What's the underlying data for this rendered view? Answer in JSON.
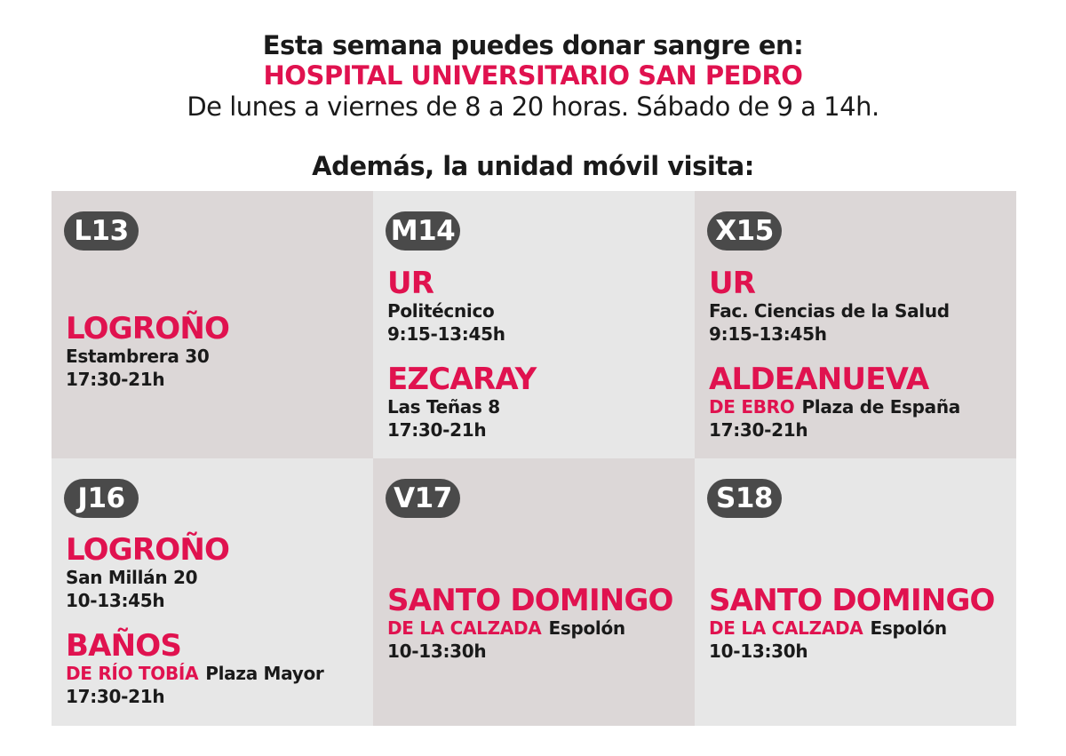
{
  "header": {
    "line1": "Esta semana puedes donar sangre en:",
    "hospital": "HOSPITAL UNIVERSITARIO SAN PEDRO",
    "hours": "De lunes a viernes de 8 a 20 horas. Sábado de 9 a 14h.",
    "mobile_intro": "Además, la unidad móvil visita:"
  },
  "colors": {
    "accent": "#e0124f",
    "badge": "#4a4a4a",
    "cell_dark": "#dcd7d7",
    "cell_light": "#e7e7e7"
  },
  "days": [
    {
      "badge": "L13",
      "entries": [
        {
          "city": "LOGROÑO",
          "address": "Estambrera 30",
          "time": "17:30-21h"
        }
      ]
    },
    {
      "badge": "M14",
      "entries": [
        {
          "city": "UR",
          "address": "Politécnico",
          "time": "9:15-13:45h"
        },
        {
          "city": "EZCARAY",
          "address": "Las Teñas 8",
          "time": "17:30-21h"
        }
      ]
    },
    {
      "badge": "X15",
      "entries": [
        {
          "city": "UR",
          "address": "Fac. Ciencias de la Salud",
          "time": "9:15-13:45h"
        },
        {
          "city": "ALDEANUEVA",
          "city_sub": "DE EBRO",
          "address": "Plaza de España",
          "time": "17:30-21h"
        }
      ]
    },
    {
      "badge": "J16",
      "entries": [
        {
          "city": "LOGROÑO",
          "address": "San Millán 20",
          "time": "10-13:45h"
        },
        {
          "city": "BAÑOS",
          "city_sub": "DE RÍO TOBÍA",
          "address": "Plaza Mayor",
          "time": "17:30-21h"
        }
      ]
    },
    {
      "badge": "V17",
      "entries": [
        {
          "city": "SANTO DOMINGO",
          "city_sub": "DE LA CALZADA",
          "address": "Espolón",
          "time": "10-13:30h"
        }
      ]
    },
    {
      "badge": "S18",
      "entries": [
        {
          "city": "SANTO DOMINGO",
          "city_sub": "DE LA CALZADA",
          "address": "Espolón",
          "time": "10-13:30h"
        }
      ]
    }
  ]
}
